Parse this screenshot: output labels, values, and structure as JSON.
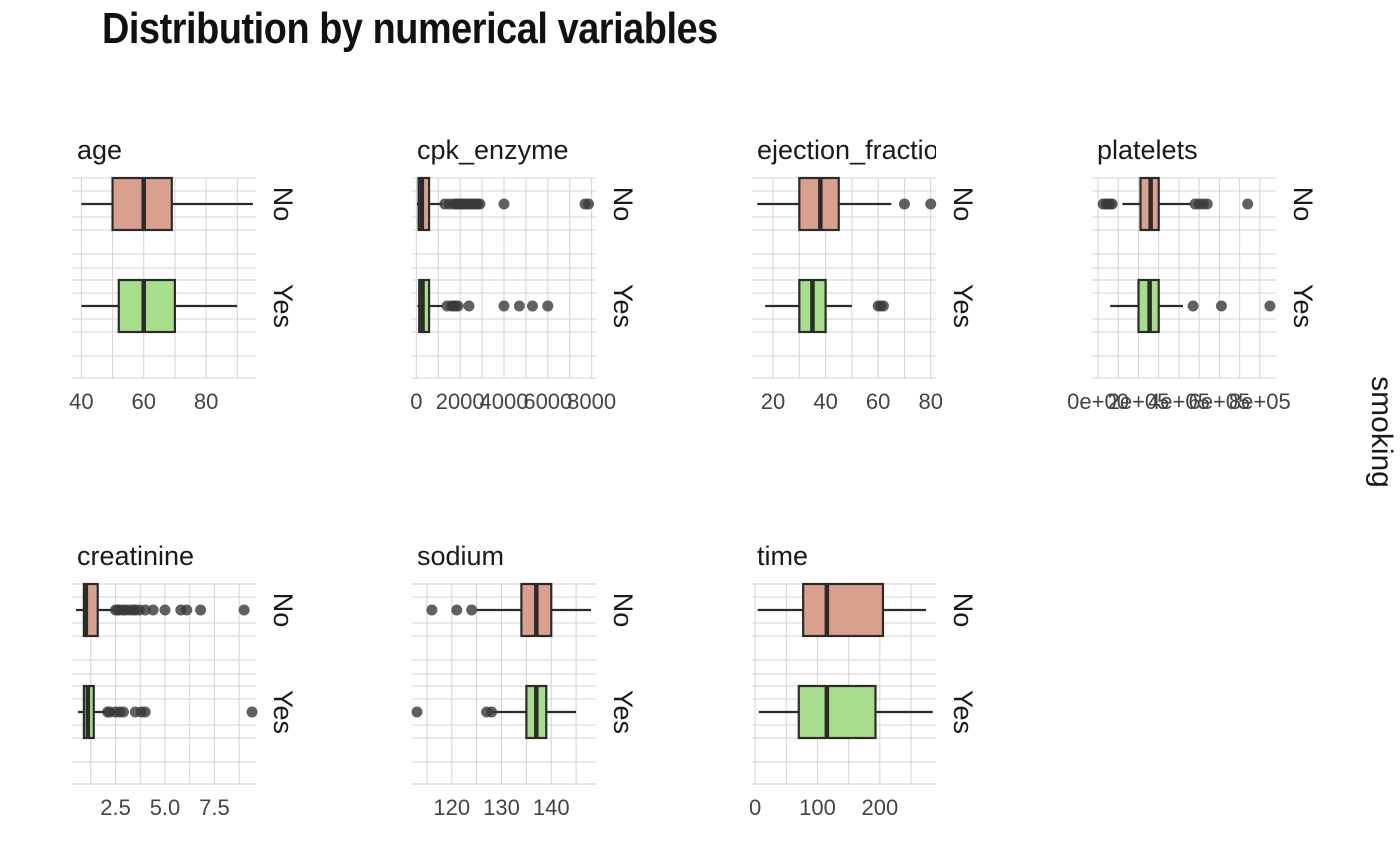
{
  "title": "Distribution by numerical variables",
  "facet_strip_label": "smoking",
  "colors": {
    "No": "#d9a08e",
    "Yes": "#a6de8c",
    "box_line": "#2b2b2b",
    "grid": "#d4d4d4",
    "outlier": "#3a3a3a"
  },
  "chart_data": [
    {
      "type": "box",
      "variable": "age",
      "xlim": [
        37,
        96
      ],
      "ticks": [
        40,
        60,
        80
      ],
      "tick_labels": [
        "40",
        "60",
        "80"
      ],
      "groups": [
        {
          "name": "No",
          "min": 40,
          "q1": 50,
          "median": 60,
          "q3": 69,
          "max": 95,
          "outliers": []
        },
        {
          "name": "Yes",
          "min": 40,
          "q1": 52,
          "median": 60,
          "q3": 70,
          "max": 90,
          "outliers": []
        }
      ]
    },
    {
      "type": "box",
      "variable": "cpk_enzyme",
      "xlim": [
        -200,
        8200
      ],
      "ticks": [
        0,
        2000,
        4000,
        6000,
        8000
      ],
      "tick_labels": [
        "0",
        "2000",
        "4000",
        "6000",
        "8000"
      ],
      "groups": [
        {
          "name": "No",
          "min": 23,
          "q1": 100,
          "median": 250,
          "q3": 580,
          "max": 1200,
          "outliers": [
            1300,
            1500,
            1700,
            1800,
            1900,
            2000,
            2100,
            2200,
            2300,
            2400,
            2500,
            2600,
            2700,
            2800,
            2900,
            4000,
            7700,
            7860
          ]
        },
        {
          "name": "Yes",
          "min": 47,
          "q1": 130,
          "median": 280,
          "q3": 580,
          "max": 1200,
          "outliers": [
            1400,
            1600,
            1700,
            1800,
            1900,
            2400,
            4000,
            4700,
            5300,
            6000
          ]
        }
      ]
    },
    {
      "type": "box",
      "variable": "ejection_fraction",
      "xlim": [
        12,
        82
      ],
      "ticks": [
        20,
        40,
        60,
        80
      ],
      "tick_labels": [
        "20",
        "40",
        "60",
        "80"
      ],
      "groups": [
        {
          "name": "No",
          "min": 14,
          "q1": 30,
          "median": 38,
          "q3": 45,
          "max": 65,
          "outliers": [
            70,
            80
          ]
        },
        {
          "name": "Yes",
          "min": 17,
          "q1": 30,
          "median": 35,
          "q3": 40,
          "max": 50,
          "outliers": [
            60,
            61,
            62
          ]
        }
      ]
    },
    {
      "type": "box",
      "variable": "platelets",
      "xlim": [
        -30000,
        880000
      ],
      "ticks": [
        0,
        200000,
        400000,
        600000,
        800000
      ],
      "tick_labels": [
        "0e+00",
        "2e+05",
        "4e+05",
        "6e+05",
        "8e+05"
      ],
      "groups": [
        {
          "name": "No",
          "min": 120000,
          "q1": 210000,
          "median": 260000,
          "q3": 300000,
          "max": 460000,
          "outliers": [
            25000,
            40000,
            50000,
            60000,
            70000,
            480000,
            500000,
            520000,
            540000,
            740000
          ]
        },
        {
          "name": "Yes",
          "min": 60000,
          "q1": 200000,
          "median": 255000,
          "q3": 300000,
          "max": 420000,
          "outliers": [
            470000,
            610000,
            850000
          ]
        }
      ]
    },
    {
      "type": "box",
      "variable": "creatinine",
      "xlim": [
        0.3,
        9.6
      ],
      "ticks": [
        2.5,
        5.0,
        7.5
      ],
      "tick_labels": [
        "2.5",
        "5.0",
        "7.5"
      ],
      "groups": [
        {
          "name": "No",
          "min": 0.5,
          "q1": 0.9,
          "median": 1.0,
          "q3": 1.6,
          "max": 2.4,
          "outliers": [
            2.5,
            2.6,
            2.7,
            2.9,
            3.0,
            3.2,
            3.4,
            3.5,
            3.7,
            4.0,
            4.4,
            5.0,
            5.8,
            6.1,
            6.8,
            9.0
          ]
        },
        {
          "name": "Yes",
          "min": 0.6,
          "q1": 0.9,
          "median": 1.1,
          "q3": 1.4,
          "max": 2.0,
          "outliers": [
            2.1,
            2.2,
            2.5,
            2.7,
            2.9,
            3.5,
            3.8,
            4.0,
            9.4
          ]
        }
      ]
    },
    {
      "type": "box",
      "variable": "sodium",
      "xlim": [
        112,
        149
      ],
      "ticks": [
        120,
        130,
        140
      ],
      "tick_labels": [
        "120",
        "130",
        "140"
      ],
      "groups": [
        {
          "name": "No",
          "min": 125,
          "q1": 134,
          "median": 137,
          "q3": 140,
          "max": 148,
          "outliers": [
            116,
            121,
            124
          ]
        },
        {
          "name": "Yes",
          "min": 128,
          "q1": 135,
          "median": 137,
          "q3": 139,
          "max": 145,
          "outliers": [
            113,
            127,
            128
          ]
        }
      ]
    },
    {
      "type": "box",
      "variable": "time",
      "xlim": [
        -5,
        290
      ],
      "ticks": [
        0,
        100,
        200
      ],
      "tick_labels": [
        "0",
        "100",
        "200"
      ],
      "groups": [
        {
          "name": "No",
          "min": 4,
          "q1": 77,
          "median": 115,
          "q3": 205,
          "max": 274,
          "outliers": []
        },
        {
          "name": "Yes",
          "min": 6,
          "q1": 70,
          "median": 115,
          "q3": 193,
          "max": 285,
          "outliers": []
        }
      ]
    }
  ]
}
